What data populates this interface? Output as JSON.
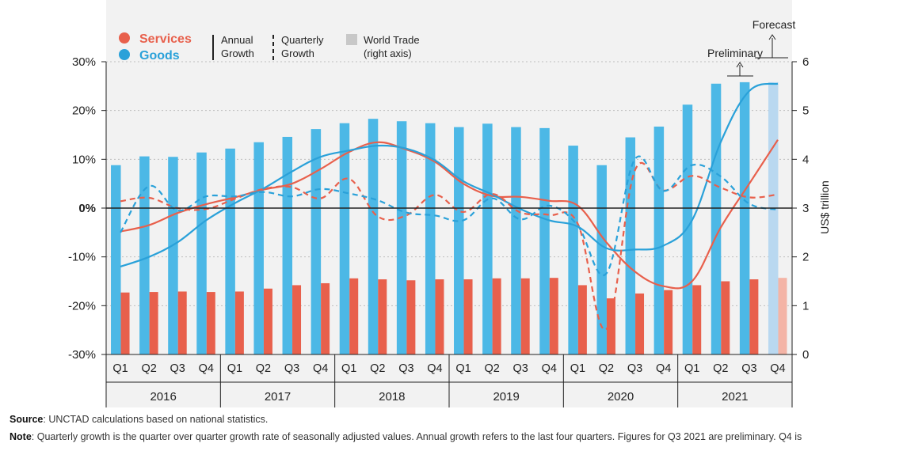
{
  "chart_data": {
    "type": "bar+line",
    "title": "",
    "quarters": [
      "Q1",
      "Q2",
      "Q3",
      "Q4",
      "Q1",
      "Q2",
      "Q3",
      "Q4",
      "Q1",
      "Q2",
      "Q3",
      "Q4",
      "Q1",
      "Q2",
      "Q3",
      "Q4",
      "Q1",
      "Q2",
      "Q3",
      "Q4",
      "Q1",
      "Q2",
      "Q3",
      "Q4"
    ],
    "years": [
      "2016",
      "2017",
      "2018",
      "2019",
      "2020",
      "2021"
    ],
    "left_axis": {
      "ticks": [
        "30%",
        "20%",
        "10%",
        "0%",
        "-10%",
        "-20%",
        "-30%"
      ],
      "range": [
        -30,
        30
      ]
    },
    "right_axis": {
      "ticks": [
        "6",
        "5",
        "4",
        "3",
        "2",
        "1",
        "0"
      ],
      "range": [
        0,
        6
      ],
      "label": "US$ trillion"
    },
    "bars": {
      "goods": [
        3.88,
        4.06,
        4.05,
        4.14,
        4.22,
        4.35,
        4.46,
        4.62,
        4.74,
        4.83,
        4.78,
        4.74,
        4.66,
        4.73,
        4.66,
        4.64,
        4.28,
        3.88,
        4.45,
        4.67,
        5.12,
        5.55,
        5.58,
        5.58
      ],
      "services": [
        1.27,
        1.28,
        1.29,
        1.28,
        1.29,
        1.35,
        1.42,
        1.46,
        1.56,
        1.54,
        1.52,
        1.54,
        1.54,
        1.56,
        1.56,
        1.57,
        1.42,
        1.15,
        1.25,
        1.32,
        1.42,
        1.5,
        1.54,
        1.57
      ],
      "forecast_index": 23
    },
    "series": [
      {
        "name": "Services Annual Growth",
        "style": "solid",
        "color": "#e8604c",
        "values": [
          -4.8,
          -3.5,
          -1.0,
          0.8,
          2.2,
          3.8,
          5.0,
          8.0,
          11.5,
          13.5,
          12.0,
          9.5,
          5.0,
          2.5,
          2.3,
          1.5,
          0.5,
          -7.0,
          -13.0,
          -16.0,
          -15.0,
          -4.0,
          5.0,
          14.0
        ]
      },
      {
        "name": "Goods Annual Growth",
        "style": "solid",
        "color": "#2aa1d9",
        "values": [
          -12.0,
          -10.0,
          -7.0,
          -2.5,
          1.0,
          4.0,
          7.5,
          10.5,
          11.8,
          12.8,
          12.2,
          9.8,
          5.5,
          2.8,
          -0.2,
          -2.5,
          -3.8,
          -8.2,
          -8.5,
          -7.7,
          -2.5,
          13.5,
          24.0,
          25.5
        ]
      },
      {
        "name": "Services Quarterly Growth",
        "style": "dashed",
        "color": "#e8604c",
        "values": [
          1.4,
          2.1,
          0.0,
          -0.2,
          1.9,
          3.9,
          4.3,
          2.0,
          6.0,
          -1.7,
          -1.5,
          2.7,
          -0.8,
          2.9,
          -0.9,
          -1.4,
          -3.2,
          -24.8,
          7.7,
          3.6,
          6.6,
          4.2,
          2.2,
          2.8
        ]
      },
      {
        "name": "Goods Quarterly Growth",
        "style": "dashed",
        "color": "#2aa1d9",
        "values": [
          -5.0,
          4.5,
          -0.5,
          2.4,
          2.4,
          3.3,
          2.4,
          3.9,
          3.0,
          1.6,
          -0.9,
          -1.5,
          -2.5,
          2.0,
          -2.3,
          0.5,
          -3.6,
          -13.4,
          10.0,
          3.5,
          8.8,
          6.5,
          0.9,
          -0.3
        ]
      }
    ],
    "legend": {
      "services": "Services",
      "goods": "Goods",
      "annual": [
        "Annual",
        "Growth"
      ],
      "quarterly": [
        "Quarterly",
        "Growth"
      ],
      "world_trade": [
        "World Trade",
        "(right axis)"
      ]
    },
    "annotations": {
      "forecast": "Forecast",
      "preliminary": "Preliminary"
    }
  },
  "footer": {
    "source_label": "Source",
    "source_text": ": UNCTAD calculations based on national statistics.",
    "note_label": "Note",
    "note_text": ": Quarterly growth is the quarter over quarter growth rate of seasonally adjusted values. Annual growth refers to the last four quarters. Figures for Q3 2021 are preliminary. Q4 is"
  },
  "colors": {
    "goods": "#4cb8e6",
    "services": "#e8604c",
    "goods_line": "#2aa1d9",
    "forecast_goods": "#b9d8f0",
    "forecast_services": "#f4b4a6",
    "world_trade_swatch": "#c8c8c8",
    "panel": "#f2f2f2"
  }
}
